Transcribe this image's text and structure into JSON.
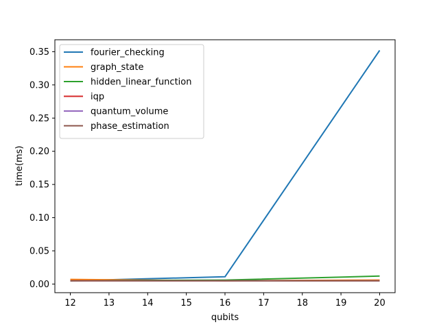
{
  "chart_data": {
    "type": "line",
    "xlabel": "qubits",
    "ylabel": "time(ms)",
    "xlim": [
      11.6,
      20.4
    ],
    "ylim": [
      -0.013,
      0.368
    ],
    "xticks": [
      "12",
      "13",
      "14",
      "15",
      "16",
      "17",
      "18",
      "19",
      "20"
    ],
    "yticks": [
      "0.00",
      "0.05",
      "0.10",
      "0.15",
      "0.20",
      "0.25",
      "0.30",
      "0.35"
    ],
    "grid": false,
    "legend_position": "upper-left",
    "x": [
      12,
      16,
      20
    ],
    "series": [
      {
        "name": "fourier_checking",
        "color": "#1f77b4",
        "values": [
          0.005,
          0.011,
          0.352
        ]
      },
      {
        "name": "graph_state",
        "color": "#ff7f0e",
        "values": [
          0.007,
          0.005,
          0.006
        ]
      },
      {
        "name": "hidden_linear_function",
        "color": "#2ca02c",
        "values": [
          0.005,
          0.006,
          0.012
        ]
      },
      {
        "name": "iqp",
        "color": "#d62728",
        "values": [
          0.005,
          0.005,
          0.005
        ]
      },
      {
        "name": "quantum_volume",
        "color": "#9467bd",
        "values": [
          0.005,
          0.005,
          0.005
        ]
      },
      {
        "name": "phase_estimation",
        "color": "#8c564b",
        "values": [
          0.005,
          0.005,
          0.005
        ]
      }
    ]
  }
}
